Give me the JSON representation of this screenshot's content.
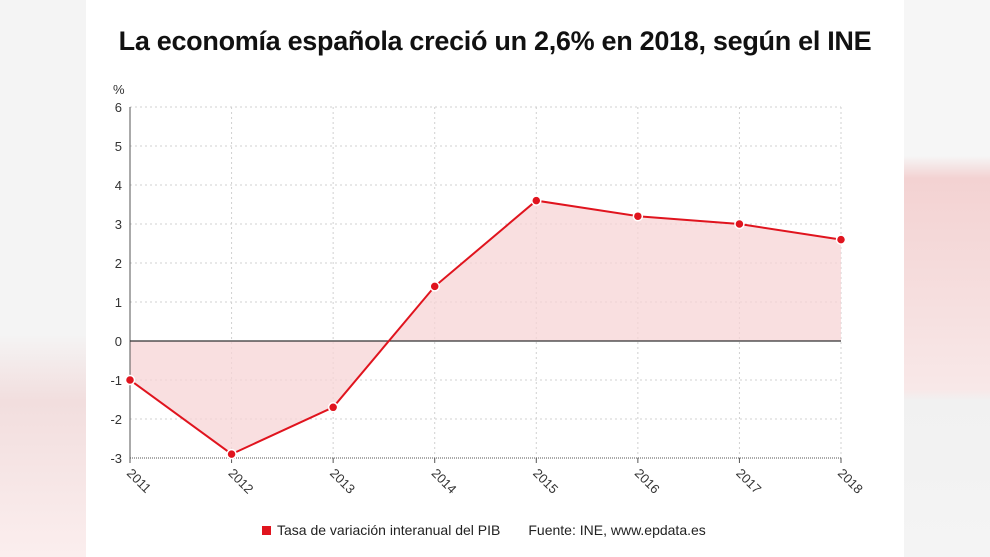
{
  "chart_data": {
    "type": "line",
    "title": "La economía española creció un 2,6% en 2018, según el INE",
    "ylabel": "%",
    "xlabel": "",
    "categories": [
      "2011",
      "2012",
      "2013",
      "2014",
      "2015",
      "2016",
      "2017",
      "2018"
    ],
    "series": [
      {
        "name": "Tasa de variación interanual del PIB",
        "values": [
          -1.0,
          -2.9,
          -1.7,
          1.4,
          3.6,
          3.2,
          3.0,
          2.6
        ]
      }
    ],
    "ylim": [
      -3,
      6
    ],
    "yticks": [
      "6",
      "5",
      "4",
      "3",
      "2",
      "1",
      "0",
      "-1",
      "-2",
      "-3"
    ],
    "grid": true,
    "legend": "bottom",
    "source": "Fuente: INE, www.epdata.es",
    "colors": {
      "line": "#e0141e",
      "fill": "#f7d4d6"
    }
  }
}
